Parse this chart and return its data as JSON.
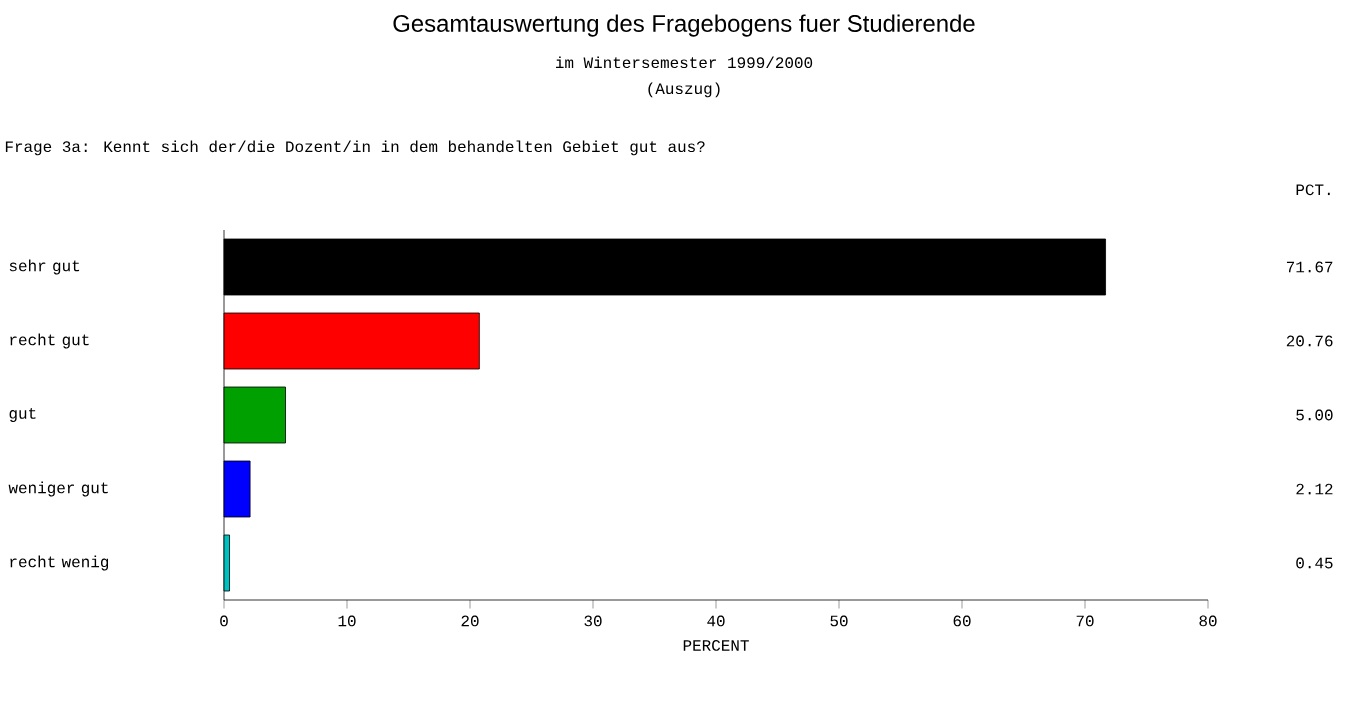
{
  "chart_data": {
    "type": "bar",
    "orientation": "horizontal",
    "title": "Gesamtauswertung des Fragebogens fuer Studierende",
    "subtitle": "im Wintersemester 1999/2000",
    "annotations": [
      "(Auszug)",
      "Frage 3a: Kennt sich der/die  Dozent/in in dem behandelten Gebiet gut aus?",
      "PCT."
    ],
    "categories": [
      "sehr gut",
      "recht gut",
      "gut",
      "weniger gut",
      "recht wenig"
    ],
    "values": [
      71.67,
      20.76,
      5.0,
      2.12,
      0.45
    ],
    "value_labels": [
      "71.67",
      "20.76",
      "5.00",
      "2.12",
      "0.45"
    ],
    "colors": [
      "#000000",
      "#ff0000",
      "#00a000",
      "#0000ff",
      "#00c0c0"
    ],
    "xlabel": "PERCENT",
    "xlim": [
      0,
      80
    ],
    "xticks": [
      0,
      10,
      20,
      30,
      40,
      50,
      60,
      70,
      80
    ],
    "grid": false
  }
}
